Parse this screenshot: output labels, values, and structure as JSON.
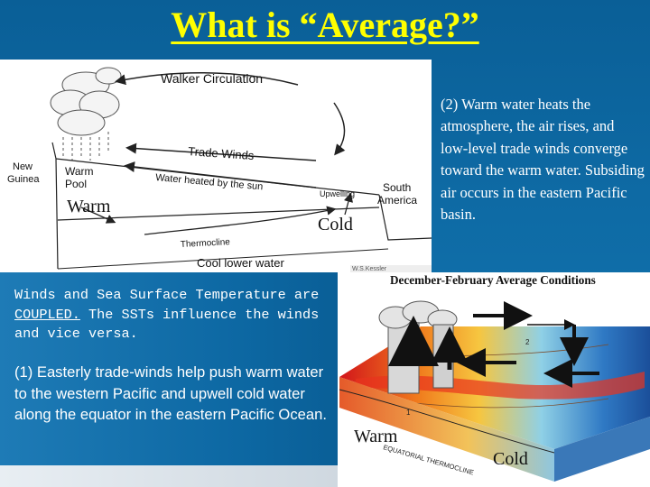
{
  "slide": {
    "title": "What is “Average?”"
  },
  "walker_diagram": {
    "circulation_label": "Walker Circulation",
    "trade_winds_label": "Trade Winds",
    "water_heated_label": "Water heated by the sun",
    "warm_pool_label_1": "Warm",
    "warm_pool_label_2": "Pool",
    "upwelling_label": "Upwelling",
    "thermocline_label": "Thermocline",
    "cool_water_label": "Cool lower water",
    "new_guinea_label_1": "New",
    "new_guinea_label_2": "Guinea",
    "south_america_label_1": "South",
    "south_america_label_2": "America",
    "credit": "W.S.Kessler",
    "warm_label": "Warm",
    "cold_label": "Cold"
  },
  "note2": "(2)  Warm water heats the atmosphere, the air rises, and low-level trade winds converge toward the warm water.  Subsiding air occurs in the eastern Pacific basin.",
  "coupled": {
    "prefix": "Winds and Sea Surface Temperature are ",
    "emphasis": "COUPLED.",
    "suffix": "  The SSTs influence the winds and vice versa."
  },
  "note1": "(1) Easterly trade-winds help push warm water to the western Pacific and upwell cold water along the equator in the eastern Pacific Ocean.",
  "ocean_diagram": {
    "title": "December-February Average Conditions",
    "thermocline_label": "EQUATORIAL THERMOCLINE",
    "warm_label": "Warm",
    "cold_label": "Cold",
    "contour_1": "1",
    "contour_2": "2"
  },
  "colors": {
    "title": "#ffff00",
    "background": "#0e6aa4",
    "text_light": "#ffffff"
  }
}
